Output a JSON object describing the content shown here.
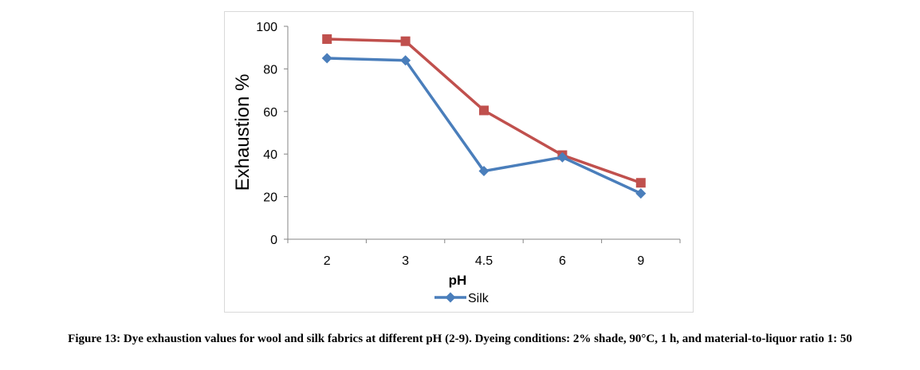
{
  "chart_data": {
    "type": "line",
    "categories": [
      "2",
      "3",
      "4.5",
      "6",
      "9"
    ],
    "xlabel": "pH",
    "ylabel": "Exhaustion %",
    "ylim": [
      0,
      100
    ],
    "yticks": [
      0,
      20,
      40,
      60,
      80,
      100
    ],
    "grid": false,
    "legend_position": "bottom",
    "series": [
      {
        "name": "",
        "color": "#c0504d",
        "marker": "square",
        "values": [
          94,
          93,
          60.5,
          39.5,
          26.5
        ],
        "show_in_legend": false
      },
      {
        "name": "Silk",
        "color": "#4a7ebb",
        "marker": "diamond",
        "values": [
          85,
          84,
          32,
          38.5,
          21.5
        ],
        "show_in_legend": true
      }
    ]
  },
  "caption": "Figure 13: Dye exhaustion values for wool and silk fabrics at different pH (2-9). Dyeing conditions: 2% shade, 90°C, 1 h, and material-to-liquor ratio 1: 50"
}
